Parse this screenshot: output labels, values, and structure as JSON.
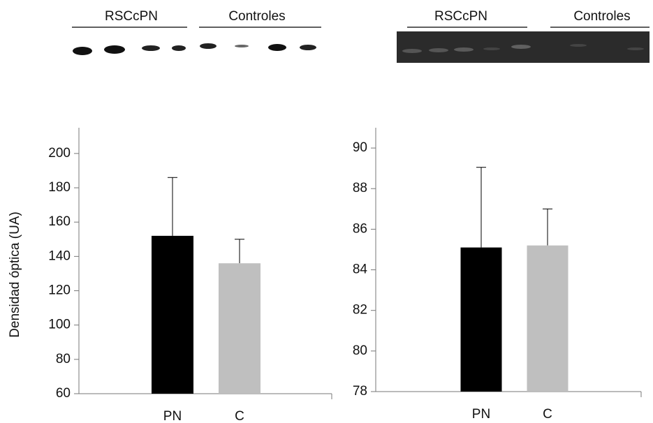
{
  "chart_data": [
    {
      "type": "bar",
      "ylabel": "Densidad óptica (UA)",
      "blot_labels": [
        "RSCcPN",
        "Controles"
      ],
      "categories": [
        "PN",
        "C"
      ],
      "values": [
        152,
        136
      ],
      "errors": [
        34,
        14
      ],
      "colors": [
        "#000000",
        "#bfbfbf"
      ],
      "ylim": [
        60,
        215
      ],
      "yticks": [
        60,
        80,
        100,
        120,
        140,
        160,
        180,
        200
      ]
    },
    {
      "type": "bar",
      "blot_labels": [
        "RSCcPN",
        "Controles"
      ],
      "categories": [
        "PN",
        "C"
      ],
      "values": [
        85.1,
        85.2
      ],
      "errors": [
        3.95,
        1.8
      ],
      "colors": [
        "#000000",
        "#bfbfbf"
      ],
      "ylim": [
        78,
        91
      ],
      "yticks": [
        78,
        80,
        82,
        84,
        86,
        88,
        90
      ]
    }
  ]
}
